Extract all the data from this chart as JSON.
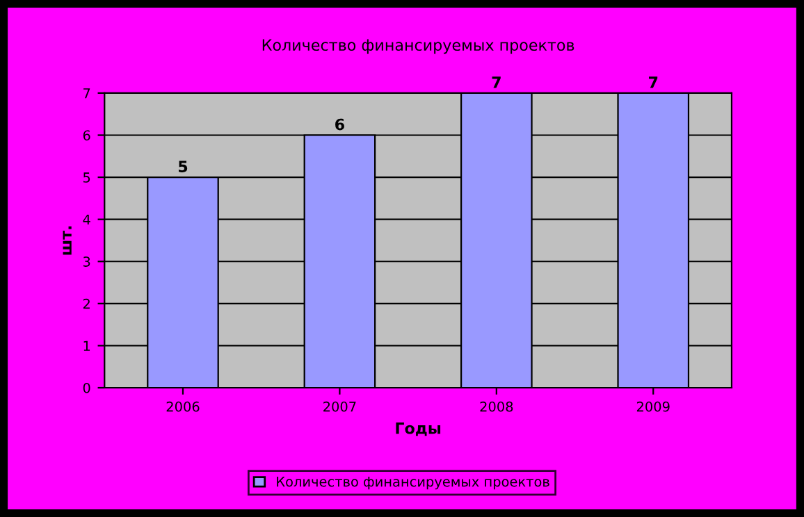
{
  "chart_data": {
    "type": "bar",
    "title": "Количество финансируемых проектов",
    "xlabel": "Годы",
    "ylabel": "шт.",
    "categories": [
      "2006",
      "2007",
      "2008",
      "2009"
    ],
    "series": [
      {
        "name": "Количество финансируемых проектов",
        "color": "#9999ff",
        "values": [
          5,
          6,
          7,
          7
        ]
      }
    ],
    "ylim": [
      0,
      7
    ],
    "yticks": [
      0,
      1,
      2,
      3,
      4,
      5,
      6,
      7
    ],
    "grid": "y",
    "legend": "bottom",
    "data_labels": true
  }
}
